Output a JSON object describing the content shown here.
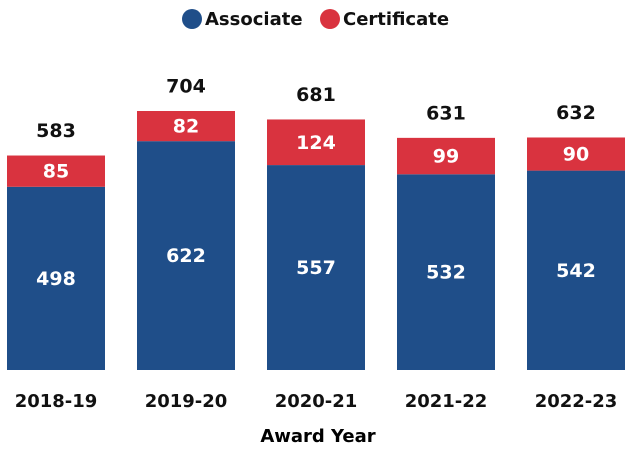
{
  "chart_data": {
    "type": "bar",
    "stacked": true,
    "x_label": "Award Year",
    "categories": [
      "2018-19",
      "2019-20",
      "2020-21",
      "2021-22",
      "2022-23"
    ],
    "series": [
      {
        "name": "Associate",
        "color": "#1f4e89",
        "values": [
          498,
          622,
          557,
          532,
          542
        ]
      },
      {
        "name": "Certificate",
        "color": "#d9333f",
        "values": [
          85,
          82,
          124,
          99,
          90
        ]
      }
    ],
    "totals": [
      583,
      704,
      681,
      631,
      632
    ],
    "legend": "top"
  }
}
